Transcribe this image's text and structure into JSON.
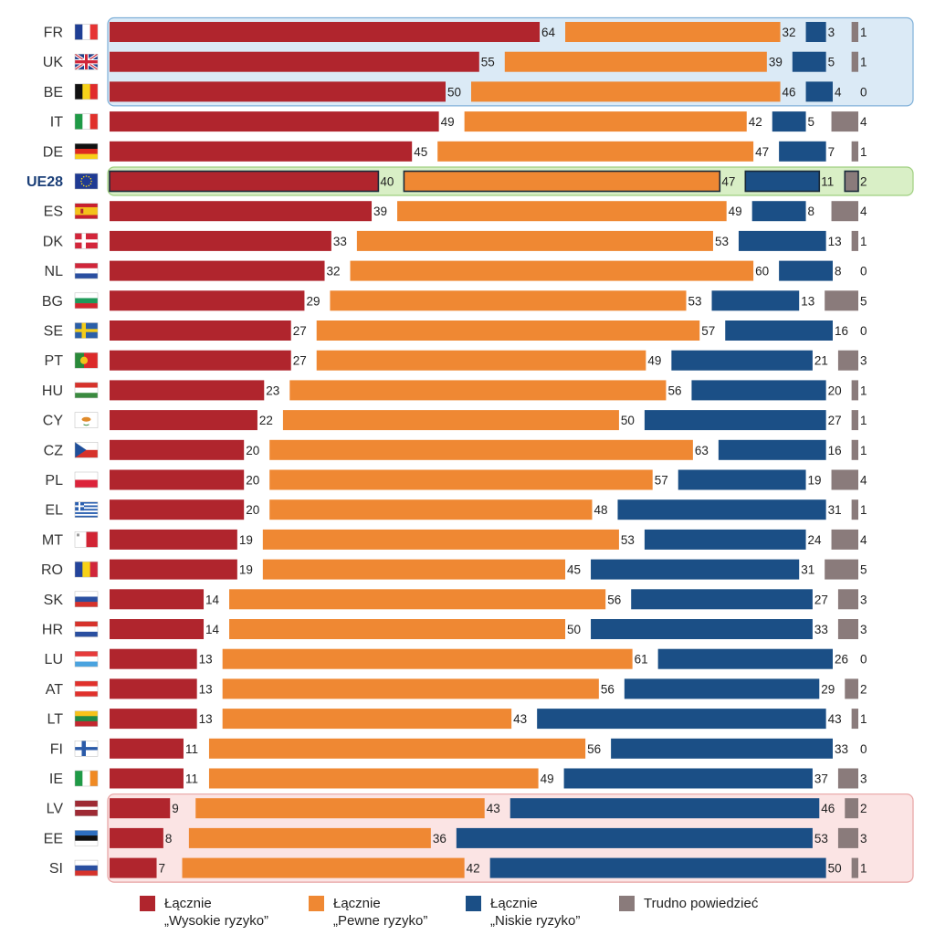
{
  "chart_data": {
    "type": "bar",
    "stacked": true,
    "orientation": "horizontal",
    "categories": [
      "FR",
      "UK",
      "BE",
      "IT",
      "DE",
      "UE28",
      "ES",
      "DK",
      "NL",
      "BG",
      "SE",
      "PT",
      "HU",
      "CY",
      "CZ",
      "PL",
      "EL",
      "MT",
      "RO",
      "SK",
      "HR",
      "LU",
      "AT",
      "LT",
      "FI",
      "IE",
      "LV",
      "EE",
      "SI"
    ],
    "highlight_category": "UE28",
    "series": [
      {
        "name": "Łącznie\n„Wysokie ryzyko”",
        "color": "#b0252d",
        "values": [
          64,
          55,
          50,
          49,
          45,
          40,
          39,
          33,
          32,
          29,
          27,
          27,
          23,
          22,
          20,
          20,
          20,
          19,
          19,
          14,
          14,
          13,
          13,
          13,
          11,
          11,
          9,
          8,
          7
        ]
      },
      {
        "name": "Łącznie\n„Pewne ryzyko”",
        "color": "#ef8833",
        "values": [
          32,
          39,
          46,
          42,
          47,
          47,
          49,
          53,
          60,
          53,
          57,
          49,
          56,
          50,
          63,
          57,
          48,
          53,
          45,
          56,
          50,
          61,
          56,
          43,
          56,
          49,
          43,
          36,
          42
        ]
      },
      {
        "name": "Łącznie\n„Niskie ryzyko”",
        "color": "#1b4f86",
        "values": [
          3,
          5,
          4,
          5,
          7,
          11,
          8,
          13,
          8,
          13,
          16,
          21,
          20,
          27,
          16,
          19,
          31,
          24,
          31,
          27,
          33,
          26,
          29,
          43,
          33,
          37,
          46,
          53,
          50
        ]
      },
      {
        "name": "Trudno powiedzieć",
        "color": "#8a7b7b",
        "values": [
          1,
          1,
          0,
          4,
          1,
          2,
          4,
          1,
          0,
          5,
          0,
          3,
          1,
          1,
          1,
          4,
          1,
          4,
          5,
          3,
          3,
          0,
          2,
          1,
          0,
          3,
          2,
          3,
          1
        ]
      }
    ],
    "groups": [
      {
        "from": "FR",
        "to": "BE",
        "fill": "#dbeaf6",
        "stroke": "#7fb0d8"
      },
      {
        "from": "UE28",
        "to": "UE28",
        "fill": "#d9efc6",
        "stroke": "#9fcf7f"
      },
      {
        "from": "LV",
        "to": "SI",
        "fill": "#fbe4e4",
        "stroke": "#e7a2a2"
      }
    ],
    "grid": false,
    "legend_position": "bottom"
  },
  "flags": {
    "FR": {
      "type": "v",
      "colors": [
        "#1f3f95",
        "#ffffff",
        "#e63333"
      ]
    },
    "UK": {
      "type": "uk"
    },
    "BE": {
      "type": "v",
      "colors": [
        "#111111",
        "#f6d21a",
        "#e02b2b"
      ]
    },
    "IT": {
      "type": "v",
      "colors": [
        "#1f9a46",
        "#ffffff",
        "#e0312c"
      ]
    },
    "DE": {
      "type": "h",
      "colors": [
        "#111111",
        "#dd2a1f",
        "#f7cf1a"
      ]
    },
    "UE28": {
      "type": "eu"
    },
    "ES": {
      "type": "es"
    },
    "DK": {
      "type": "nordic",
      "colors": [
        "#d3253a",
        "#ffffff"
      ]
    },
    "NL": {
      "type": "h",
      "colors": [
        "#d0263a",
        "#ffffff",
        "#2a4fa0"
      ]
    },
    "BG": {
      "type": "h",
      "colors": [
        "#ffffff",
        "#1f9a5a",
        "#d4262f"
      ]
    },
    "SE": {
      "type": "nordic",
      "colors": [
        "#2b5fa8",
        "#f4cc1a"
      ]
    },
    "PT": {
      "type": "pt"
    },
    "HU": {
      "type": "h",
      "colors": [
        "#d6322b",
        "#ffffff",
        "#3a8a3f"
      ]
    },
    "CY": {
      "type": "cy"
    },
    "CZ": {
      "type": "cz"
    },
    "PL": {
      "type": "h",
      "colors": [
        "#ffffff",
        "#dc233a"
      ]
    },
    "EL": {
      "type": "gr"
    },
    "MT": {
      "type": "v",
      "colors": [
        "#ffffff",
        "#d12434"
      ]
    },
    "RO": {
      "type": "v",
      "colors": [
        "#24449b",
        "#f7d117",
        "#d0263a"
      ]
    },
    "SK": {
      "type": "h",
      "colors": [
        "#ffffff",
        "#2a4fa0",
        "#d6322b"
      ]
    },
    "HR": {
      "type": "h",
      "colors": [
        "#d6322b",
        "#ffffff",
        "#2a4fa0"
      ]
    },
    "LU": {
      "type": "h",
      "colors": [
        "#e63b3b",
        "#ffffff",
        "#4aa3df"
      ]
    },
    "AT": {
      "type": "h",
      "colors": [
        "#e0312c",
        "#ffffff",
        "#e0312c"
      ]
    },
    "LT": {
      "type": "h",
      "colors": [
        "#f7c21a",
        "#1f8a46",
        "#c3272f"
      ]
    },
    "FI": {
      "type": "nordic",
      "colors": [
        "#ffffff",
        "#2a5aa8"
      ]
    },
    "IE": {
      "type": "v",
      "colors": [
        "#1f9a46",
        "#ffffff",
        "#f08a24"
      ]
    },
    "LV": {
      "type": "lv"
    },
    "EE": {
      "type": "h",
      "colors": [
        "#2e6fc0",
        "#111111",
        "#ffffff"
      ]
    },
    "SI": {
      "type": "h",
      "colors": [
        "#ffffff",
        "#2a4fa0",
        "#d6322b"
      ]
    }
  }
}
